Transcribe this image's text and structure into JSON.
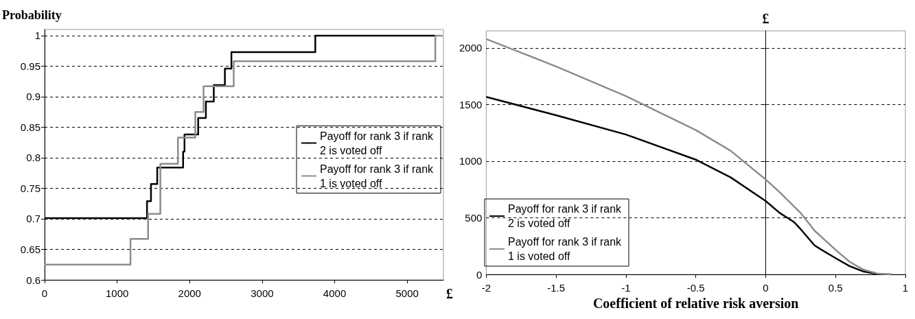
{
  "chart_data": [
    {
      "type": "step",
      "ylabel": "Probability",
      "xlabel": "£",
      "xlim": [
        0,
        5500
      ],
      "xticks": [
        0,
        1000,
        2000,
        3000,
        4000,
        5000
      ],
      "ylim": [
        0.6,
        1.01
      ],
      "yticks": [
        0.6,
        0.65,
        0.7,
        0.75,
        0.8,
        0.85,
        0.9,
        0.95,
        1
      ],
      "grid": "y",
      "legend": "right",
      "marker": "none",
      "series": [
        {
          "name": "Payoff for rank 3 if rank 2 is voted off",
          "color": "#000000",
          "x": [
            0,
            1412,
            1467,
            1553,
            1910,
            1929,
            2118,
            2224,
            2333,
            2486,
            2576,
            3733,
            5388
          ],
          "values": [
            0.701,
            0.729,
            0.757,
            0.784,
            0.81,
            0.838,
            0.865,
            0.892,
            0.919,
            0.946,
            0.973,
            1.0,
            1.0
          ]
        },
        {
          "name": "Payoff for rank 3 if rank 1 is voted off",
          "color": "#8c8c8c",
          "x": [
            0,
            1184,
            1427,
            1596,
            1839,
            2078,
            2192,
            2608,
            5388,
            5478
          ],
          "values": [
            0.625,
            0.667,
            0.708,
            0.79,
            0.833,
            0.875,
            0.917,
            0.958,
            1.0,
            1.0
          ]
        }
      ]
    },
    {
      "type": "line",
      "ylabel": "£",
      "xlabel": "Coefficient of relative risk aversion",
      "xlim": [
        -2,
        1
      ],
      "xticks": [
        -2,
        -1.5,
        -1,
        -0.5,
        0,
        0.5,
        1
      ],
      "ylim": [
        0,
        2150
      ],
      "yticks": [
        0,
        500,
        1000,
        1500,
        2000
      ],
      "grid": "y",
      "legend": "bottom left",
      "marker": "none",
      "series": [
        {
          "name": "Payoff for rank 3 if rank 2 is voted off",
          "color": "#000000",
          "x": [
            -2,
            -1.5,
            -1,
            -0.5,
            -0.25,
            0,
            0.1,
            0.2,
            0.25,
            0.35,
            0.4,
            0.5,
            0.6,
            0.7,
            0.8,
            0.9
          ],
          "values": [
            1567,
            1405,
            1235,
            1013,
            856,
            648,
            543,
            465,
            400,
            256,
            217,
            144,
            73,
            26,
            3,
            0
          ]
        },
        {
          "name": "Payoff for rank 3 if rank 1 is voted off",
          "color": "#8c8c8c",
          "x": [
            -2,
            -1.5,
            -1,
            -0.5,
            -0.25,
            0,
            0.1,
            0.25,
            0.35,
            0.5,
            0.6,
            0.7,
            0.8,
            0.9
          ],
          "values": [
            2078,
            1836,
            1574,
            1274,
            1091,
            838,
            726,
            543,
            386,
            217,
            112,
            42,
            8,
            0
          ]
        }
      ]
    }
  ]
}
